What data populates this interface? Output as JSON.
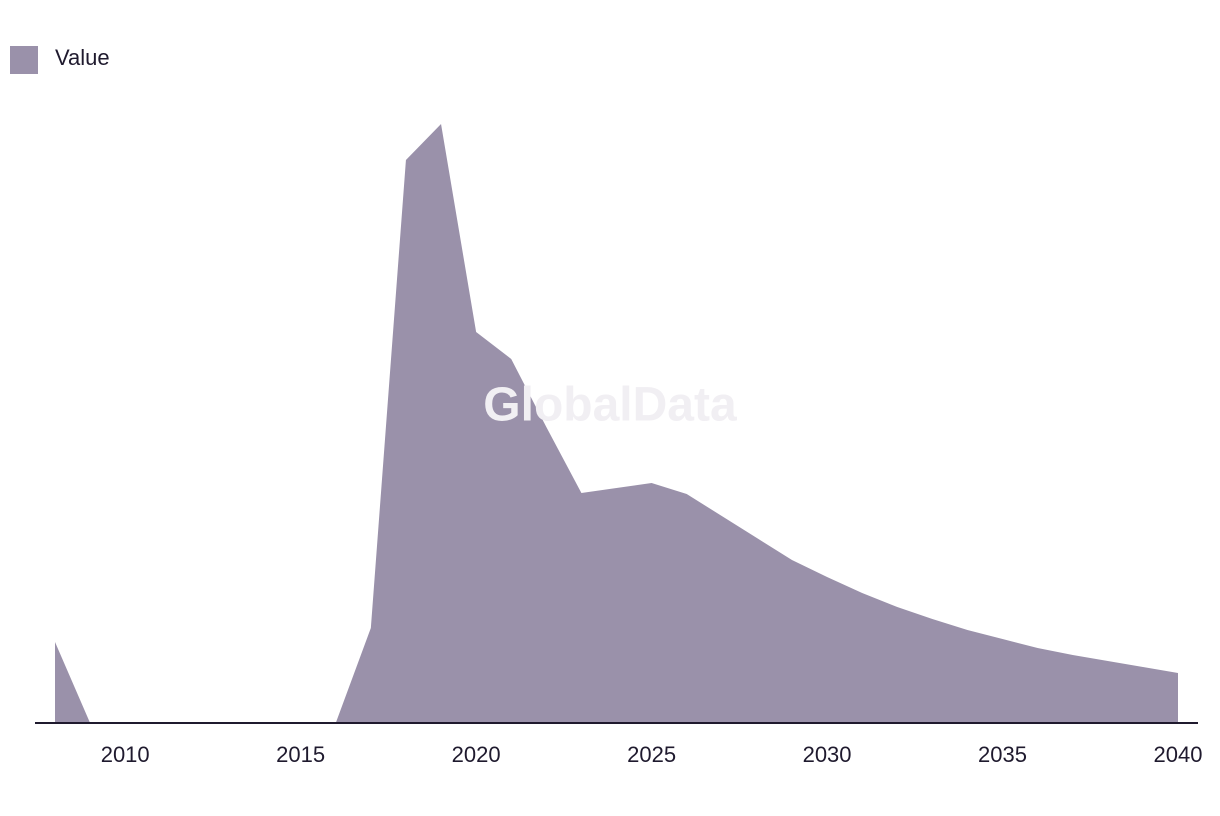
{
  "chart_data": {
    "type": "area",
    "watermark": "GlobalData",
    "x": [
      2008,
      2009,
      2010,
      2011,
      2012,
      2013,
      2014,
      2015,
      2016,
      2017,
      2018,
      2019,
      2020,
      2021,
      2022,
      2023,
      2024,
      2025,
      2026,
      2027,
      2028,
      2029,
      2030,
      2031,
      2032,
      2033,
      2034,
      2035,
      2036,
      2037,
      2038,
      2039,
      2040
    ],
    "series": [
      {
        "name": "Value",
        "color": "#9a91aa",
        "values": [
          81,
          0,
          0,
          0,
          0,
          0,
          0,
          0,
          0,
          95,
          563,
          599,
          391,
          364,
          296,
          230,
          235,
          240,
          229,
          207,
          185,
          163,
          146,
          130,
          116,
          104,
          93,
          84,
          75,
          68,
          62,
          56,
          50
        ]
      }
    ],
    "xlim": [
      2008,
      2040
    ],
    "xticks": [
      2010,
      2015,
      2020,
      2025,
      2030,
      2035,
      2040
    ],
    "ylim": [
      0,
      640
    ],
    "legend": "top-left"
  }
}
